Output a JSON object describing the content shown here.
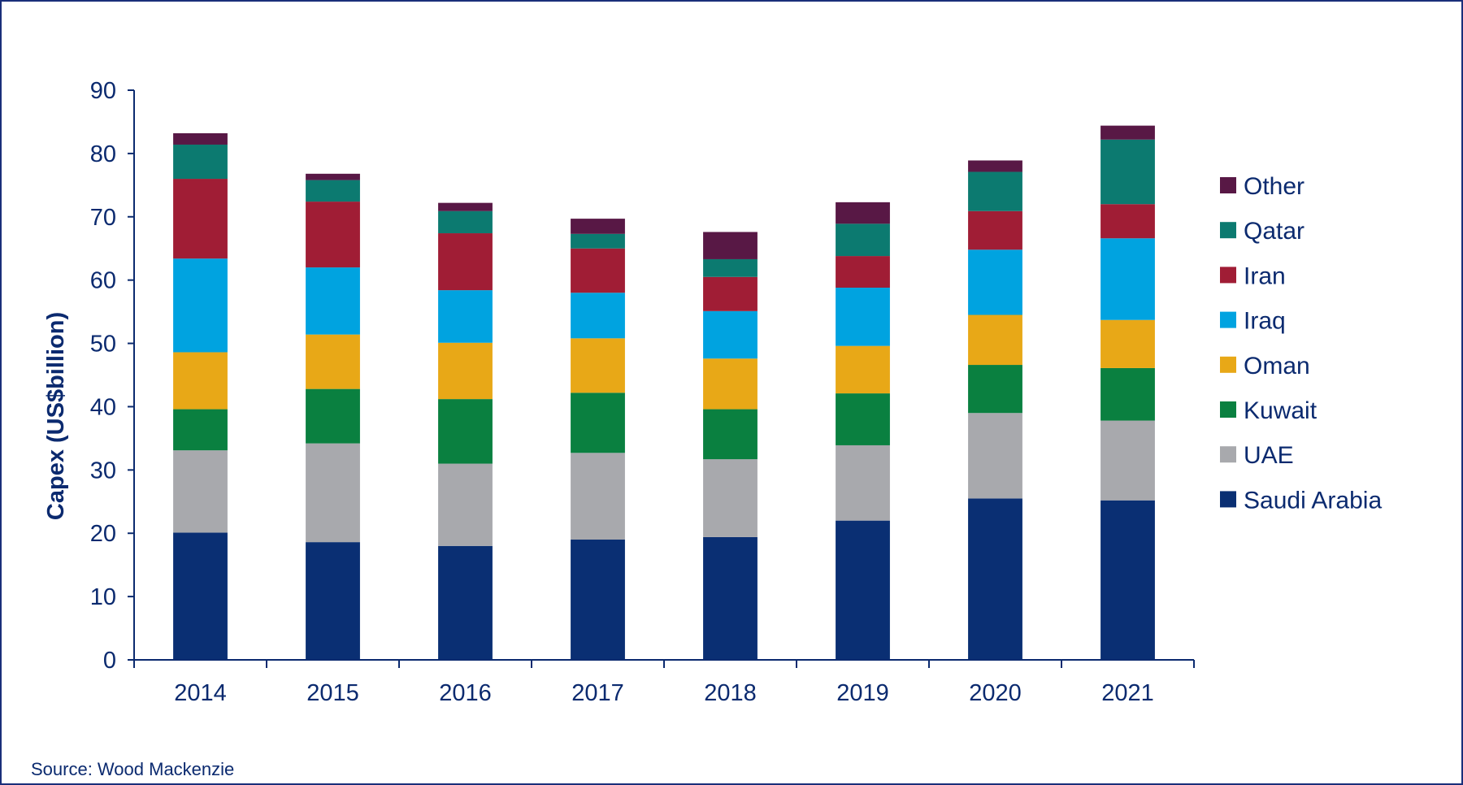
{
  "chart_data": {
    "type": "bar",
    "stacked": true,
    "title": "",
    "xlabel": "",
    "ylabel": "Capex (US$billion)",
    "ylim": [
      0,
      90
    ],
    "yticks": [
      0,
      10,
      20,
      30,
      40,
      50,
      60,
      70,
      80,
      90
    ],
    "categories": [
      "2014",
      "2015",
      "2016",
      "2017",
      "2018",
      "2019",
      "2020",
      "2021"
    ],
    "series": [
      {
        "name": "Saudi Arabia",
        "color": "#0a2f73",
        "values": [
          20.1,
          18.6,
          18.0,
          19.0,
          19.4,
          22.0,
          25.5,
          25.2
        ]
      },
      {
        "name": "UAE",
        "color": "#a8a9ad",
        "values": [
          13.0,
          15.6,
          13.0,
          13.7,
          12.3,
          11.9,
          13.5,
          12.6
        ]
      },
      {
        "name": "Kuwait",
        "color": "#0a8040",
        "values": [
          6.5,
          8.6,
          10.2,
          9.5,
          7.9,
          8.2,
          7.6,
          8.3
        ]
      },
      {
        "name": "Oman",
        "color": "#e8a817",
        "values": [
          9.0,
          8.6,
          8.9,
          8.6,
          8.0,
          7.5,
          7.9,
          7.6
        ]
      },
      {
        "name": "Iraq",
        "color": "#00a3e0",
        "values": [
          14.8,
          10.6,
          8.3,
          7.2,
          7.5,
          9.2,
          10.3,
          12.9
        ]
      },
      {
        "name": "Iran",
        "color": "#a01d35",
        "values": [
          12.6,
          10.4,
          9.0,
          7.0,
          5.4,
          5.0,
          6.1,
          5.4
        ]
      },
      {
        "name": "Qatar",
        "color": "#0c7a70",
        "values": [
          5.4,
          3.4,
          3.5,
          2.3,
          2.8,
          5.1,
          6.2,
          10.2
        ]
      },
      {
        "name": "Other",
        "color": "#581845",
        "values": [
          1.8,
          1.0,
          1.3,
          2.4,
          4.3,
          3.4,
          1.8,
          2.2
        ]
      }
    ],
    "legend_position": "right",
    "source": "Source: Wood Mackenzie"
  }
}
